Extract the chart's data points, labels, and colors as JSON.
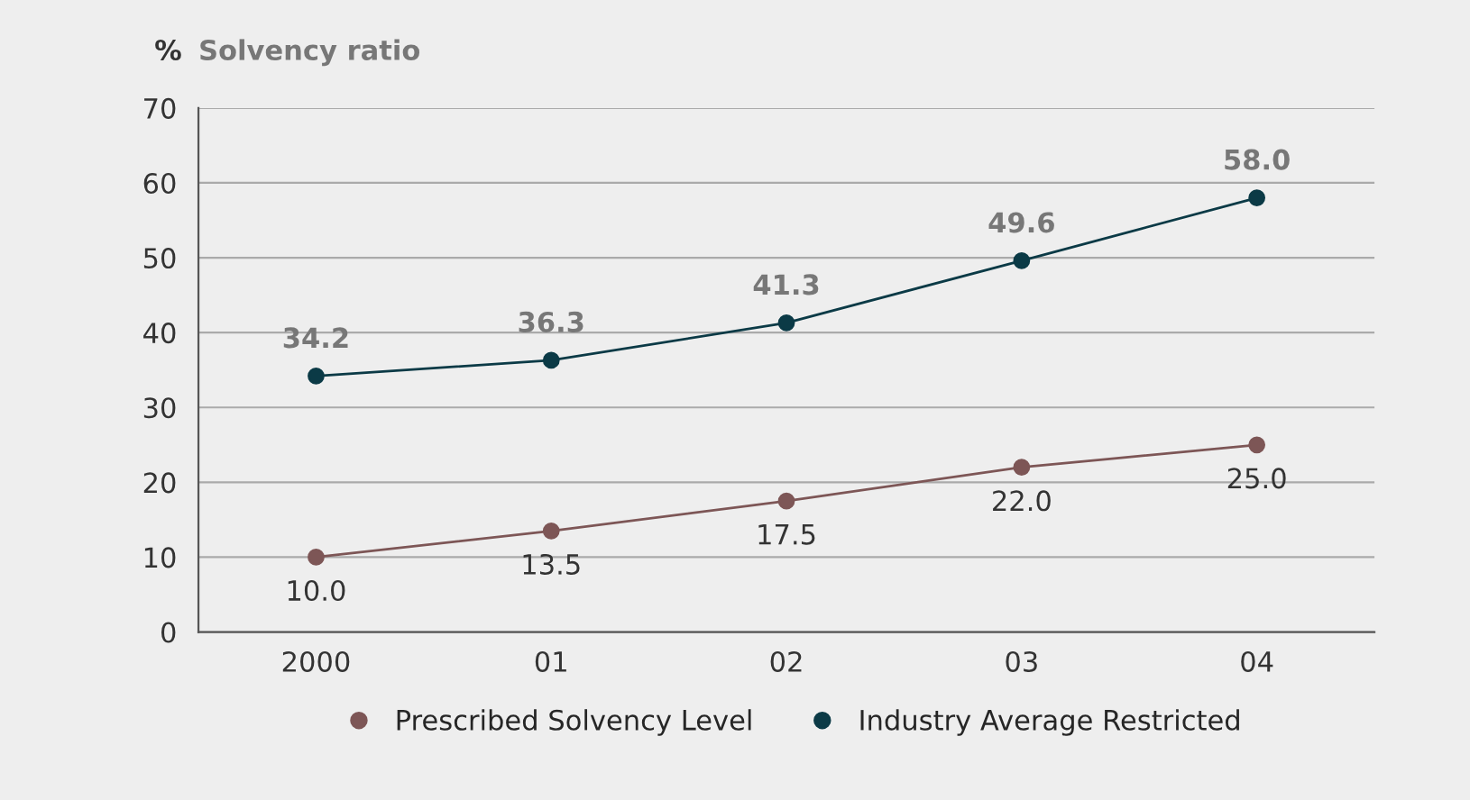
{
  "chart_data": {
    "type": "line",
    "title": "Solvency ratio",
    "ylabel": "%",
    "categories": [
      "2000",
      "01",
      "02",
      "03",
      "04"
    ],
    "series": [
      {
        "name": "Prescribed Solvency Level",
        "color": "#7d5656",
        "values": [
          10.0,
          13.5,
          17.5,
          22.0,
          25.0
        ],
        "value_labels": [
          "10.0",
          "13.5",
          "17.5",
          "22.0",
          "25.0"
        ]
      },
      {
        "name": "Industry Average Restricted",
        "color": "#0b3a46",
        "values": [
          34.2,
          36.3,
          41.3,
          49.6,
          58.0
        ],
        "value_labels": [
          "34.2",
          "36.3",
          "41.3",
          "49.6",
          "58.0"
        ]
      }
    ],
    "ylim": [
      0,
      70
    ],
    "yticks": [
      0,
      10,
      20,
      30,
      40,
      50,
      60,
      70
    ],
    "grid": "y",
    "legend": "bottom",
    "marker": "circle",
    "line_style": "solid"
  }
}
